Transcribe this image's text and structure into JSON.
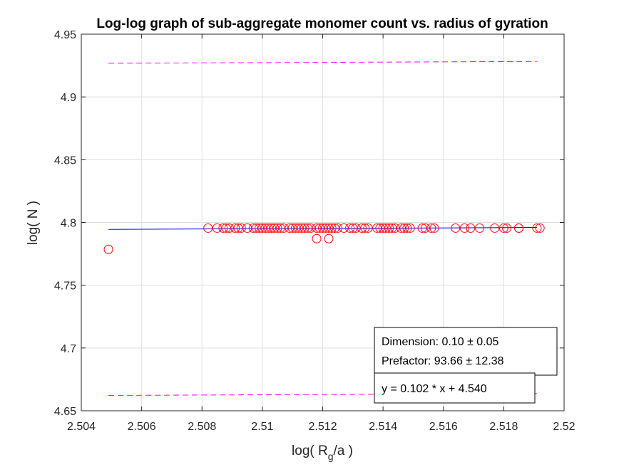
{
  "chart_data": {
    "type": "scatter",
    "title": "Log-log graph of sub-aggregate monomer count vs. radius of gyration",
    "xlabel": {
      "main": "log( R",
      "sub": "g",
      "tail": "/a )"
    },
    "ylabel": "log( N )",
    "xlim": [
      2.504,
      2.52
    ],
    "ylim": [
      4.65,
      4.95
    ],
    "x_ticks": [
      2.504,
      2.506,
      2.508,
      2.51,
      2.512,
      2.514,
      2.516,
      2.518,
      2.52
    ],
    "x_tick_labels": [
      "2.504",
      "2.506",
      "2.508",
      "2.51",
      "2.512",
      "2.514",
      "2.516",
      "2.518",
      "2.52"
    ],
    "y_ticks": [
      4.65,
      4.7,
      4.75,
      4.8,
      4.85,
      4.9,
      4.95
    ],
    "y_tick_labels": [
      "4.65",
      "4.7",
      "4.75",
      "4.8",
      "4.85",
      "4.9",
      "4.95"
    ],
    "grid": true,
    "colors": {
      "points": "#ff0000",
      "fit": "#0000ff",
      "bounds": "#ff00ff",
      "grid": "#dfdfdf",
      "axis": "#262626"
    },
    "points": {
      "x": [
        2.5049,
        2.5082,
        2.5085,
        2.5087,
        2.5088,
        2.5089,
        2.5091,
        2.5092,
        2.5093,
        2.5095,
        2.5097,
        2.5098,
        2.5099,
        2.51,
        2.5101,
        2.5102,
        2.5103,
        2.5104,
        2.5105,
        2.5106,
        2.5107,
        2.5109,
        2.511,
        2.5111,
        2.5112,
        2.5113,
        2.5114,
        2.5115,
        2.5116,
        2.5118,
        2.5118,
        2.5119,
        2.512,
        2.5121,
        2.5122,
        2.5122,
        2.5123,
        2.5124,
        2.5125,
        2.5127,
        2.5129,
        2.513,
        2.5131,
        2.5133,
        2.5134,
        2.5135,
        2.5138,
        2.5139,
        2.514,
        2.5141,
        2.5142,
        2.5143,
        2.5144,
        2.5146,
        2.5147,
        2.5148,
        2.5149,
        2.5153,
        2.5154,
        2.5156,
        2.5157,
        2.5164,
        2.5167,
        2.5169,
        2.5172,
        2.5177,
        2.518,
        2.5181,
        2.5185,
        2.5185,
        2.5191,
        2.5192
      ],
      "y": [
        4.7786,
        4.7955,
        4.7955,
        4.7955,
        4.7955,
        4.7955,
        4.7955,
        4.7955,
        4.7955,
        4.7955,
        4.7955,
        4.7955,
        4.7955,
        4.7955,
        4.7955,
        4.7955,
        4.7955,
        4.7955,
        4.7955,
        4.7955,
        4.7955,
        4.7955,
        4.7955,
        4.7955,
        4.7955,
        4.7955,
        4.7955,
        4.7955,
        4.7955,
        4.7871,
        4.7955,
        4.7955,
        4.7955,
        4.7955,
        4.7871,
        4.7955,
        4.7955,
        4.7955,
        4.7955,
        4.7955,
        4.7955,
        4.7955,
        4.7955,
        4.7955,
        4.7955,
        4.7955,
        4.7955,
        4.7955,
        4.7955,
        4.7955,
        4.7955,
        4.7955,
        4.7955,
        4.7955,
        4.7955,
        4.7955,
        4.7955,
        4.7955,
        4.7955,
        4.7955,
        4.7955,
        4.7955,
        4.7955,
        4.7955,
        4.7955,
        4.7955,
        4.7955,
        4.7955,
        4.7955,
        4.7955,
        4.7955,
        4.7955
      ]
    },
    "fit_line": {
      "x": [
        2.5049,
        2.5191
      ],
      "y": [
        4.7945,
        4.796
      ]
    },
    "upper_bound": {
      "x": [
        2.5049,
        2.5191
      ],
      "y": [
        4.9268,
        4.9283
      ]
    },
    "lower_bound": {
      "x": [
        2.5049,
        2.5191
      ],
      "y": [
        4.6622,
        4.6637
      ]
    },
    "annotations": {
      "dimension": "Dimension: 0.10 ± 0.05",
      "prefactor": "Prefactor: 93.66 ± 12.38",
      "equation": "y = 0.102 * x + 4.540"
    }
  }
}
